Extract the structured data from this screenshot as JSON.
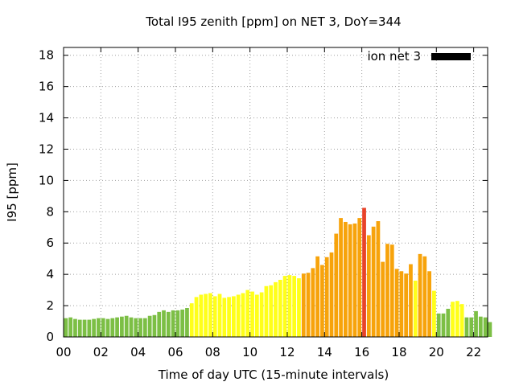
{
  "chart_data": {
    "type": "bar",
    "title": "Total I95 zenith [ppm] on NET 3, DoY=344",
    "xlabel": "Time of day UTC (15-minute intervals)",
    "ylabel": "I95 [ppm]",
    "legend": {
      "label": "ion net 3",
      "color": "#000000",
      "position": "top-right"
    },
    "xlim": [
      0,
      22.75
    ],
    "ylim": [
      0,
      18.5
    ],
    "xticks": [
      0,
      2,
      4,
      6,
      8,
      10,
      12,
      14,
      16,
      18,
      20,
      22
    ],
    "xtick_labels": [
      "00",
      "02",
      "04",
      "06",
      "08",
      "10",
      "12",
      "14",
      "16",
      "18",
      "20",
      "22"
    ],
    "yticks": [
      0,
      2,
      4,
      6,
      8,
      10,
      12,
      14,
      16,
      18
    ],
    "ytick_labels": [
      "0",
      "2",
      "4",
      "6",
      "8",
      "10",
      "12",
      "14",
      "16",
      "18"
    ],
    "grid": true,
    "interval_hours": 0.25,
    "colors": {
      "green": "#7cbf45",
      "yellow": "#ffff1a",
      "orange": "#f7a30b",
      "red": "#e8432a"
    },
    "values": [
      1.2,
      1.25,
      1.15,
      1.1,
      1.1,
      1.1,
      1.15,
      1.2,
      1.2,
      1.15,
      1.2,
      1.25,
      1.3,
      1.35,
      1.25,
      1.2,
      1.2,
      1.2,
      1.35,
      1.4,
      1.6,
      1.7,
      1.6,
      1.7,
      1.7,
      1.75,
      1.85,
      2.15,
      2.55,
      2.7,
      2.75,
      2.8,
      2.6,
      2.75,
      2.5,
      2.55,
      2.6,
      2.7,
      2.8,
      3.0,
      2.9,
      2.7,
      2.85,
      3.25,
      3.3,
      3.5,
      3.65,
      3.9,
      3.95,
      3.9,
      3.75,
      4.05,
      4.1,
      4.4,
      5.15,
      4.6,
      5.1,
      5.4,
      6.6,
      7.6,
      7.35,
      7.2,
      7.25,
      7.6,
      8.25,
      6.5,
      7.05,
      7.4,
      4.8,
      5.95,
      5.9,
      4.35,
      4.2,
      4.05,
      4.65,
      3.6,
      5.3,
      5.15,
      4.2,
      2.95,
      1.5,
      1.5,
      1.8,
      2.25,
      2.3,
      2.1,
      1.25,
      1.25,
      1.65,
      1.3,
      1.25,
      0.95
    ],
    "color_classes": [
      "green",
      "green",
      "green",
      "green",
      "green",
      "green",
      "green",
      "green",
      "green",
      "green",
      "green",
      "green",
      "green",
      "green",
      "green",
      "green",
      "green",
      "green",
      "green",
      "green",
      "green",
      "green",
      "green",
      "green",
      "green",
      "green",
      "green",
      "yellow",
      "yellow",
      "yellow",
      "yellow",
      "yellow",
      "yellow",
      "yellow",
      "yellow",
      "yellow",
      "yellow",
      "yellow",
      "yellow",
      "yellow",
      "yellow",
      "yellow",
      "yellow",
      "yellow",
      "yellow",
      "yellow",
      "yellow",
      "yellow",
      "yellow",
      "yellow",
      "yellow",
      "orange",
      "orange",
      "orange",
      "orange",
      "orange",
      "orange",
      "orange",
      "orange",
      "orange",
      "orange",
      "orange",
      "orange",
      "orange",
      "red",
      "orange",
      "orange",
      "orange",
      "orange",
      "orange",
      "orange",
      "orange",
      "orange",
      "orange",
      "orange",
      "yellow",
      "orange",
      "orange",
      "orange",
      "yellow",
      "green",
      "green",
      "green",
      "yellow",
      "yellow",
      "yellow",
      "green",
      "green",
      "green",
      "green",
      "green",
      "green"
    ]
  }
}
